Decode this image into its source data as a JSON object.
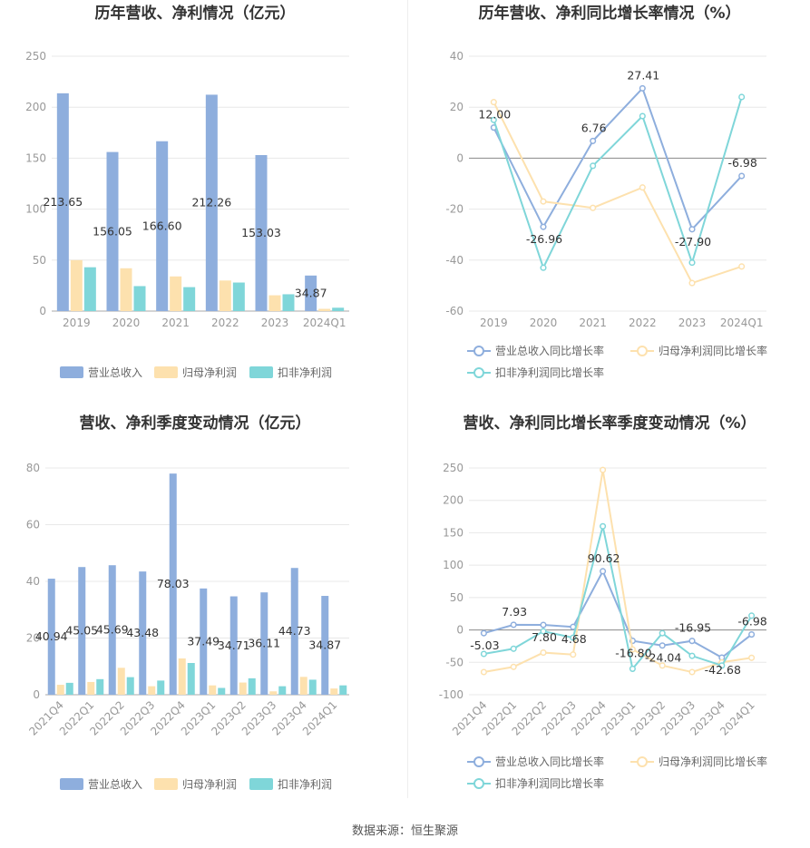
{
  "footer": "数据来源：恒生聚源",
  "colors": {
    "revenue": "#8eaedd",
    "net_profit": "#fde1ae",
    "deducted_profit": "#7fd6d9",
    "grid": "#e8e8e8",
    "axis": "#999999"
  },
  "chart_data": [
    {
      "id": "annual_amounts",
      "type": "bar",
      "title": "历年营收、净利情况（亿元）",
      "categories": [
        "2019",
        "2020",
        "2021",
        "2022",
        "2023",
        "2024Q1"
      ],
      "ylim": [
        0,
        250
      ],
      "yticks": [
        0,
        50,
        100,
        150,
        200,
        250
      ],
      "series": [
        {
          "name": "营业总收入",
          "values": [
            213.65,
            156.05,
            166.6,
            212.26,
            153.03,
            34.87
          ],
          "labels": [
            "213.65",
            "156.05",
            "166.60",
            "212.26",
            "153.03",
            "34.87"
          ]
        },
        {
          "name": "归母净利润",
          "values": [
            50,
            42,
            34,
            30,
            15.5,
            2.2
          ]
        },
        {
          "name": "扣非净利润",
          "values": [
            43,
            24.5,
            23.5,
            28,
            16.5,
            3.3
          ]
        }
      ],
      "legend": "bottom",
      "grid": true
    },
    {
      "id": "annual_growth",
      "type": "line",
      "title": "历年营收、净利同比增长率情况（%）",
      "categories": [
        "2019",
        "2020",
        "2021",
        "2022",
        "2023",
        "2024Q1"
      ],
      "ylim": [
        -60,
        40
      ],
      "yticks": [
        -60,
        -40,
        -20,
        0,
        20,
        40
      ],
      "series": [
        {
          "name": "营业总收入同比增长率",
          "values": [
            12.0,
            -26.96,
            6.76,
            27.41,
            -27.9,
            -6.98
          ],
          "labels": [
            "12.00",
            "-26.96",
            "6.76",
            "27.41",
            "-27.90",
            "-6.98"
          ]
        },
        {
          "name": "归母净利润同比增长率",
          "values": [
            22,
            -17,
            -19.5,
            -11.5,
            -49,
            -42.5
          ]
        },
        {
          "name": "扣非净利润同比增长率",
          "values": [
            15,
            -43,
            -3,
            16.5,
            -41,
            24
          ]
        }
      ],
      "legend": "bottom",
      "grid": true
    },
    {
      "id": "quarterly_amounts",
      "type": "bar",
      "title": "营收、净利季度变动情况（亿元）",
      "categories": [
        "2021Q4",
        "2022Q1",
        "2022Q2",
        "2022Q3",
        "2022Q4",
        "2023Q1",
        "2023Q2",
        "2023Q3",
        "2023Q4",
        "2024Q1"
      ],
      "ylim": [
        0,
        80
      ],
      "yticks": [
        0,
        20,
        40,
        60,
        80
      ],
      "series": [
        {
          "name": "营业总收入",
          "values": [
            40.94,
            45.05,
            45.69,
            43.48,
            78.03,
            37.49,
            34.71,
            36.11,
            44.73,
            34.87
          ],
          "labels": [
            "40.94",
            "45.05",
            "45.69",
            "43.48",
            "78.03",
            "37.49",
            "34.71",
            "36.11",
            "44.73",
            "34.87"
          ]
        },
        {
          "name": "归母净利润",
          "values": [
            3.5,
            4.5,
            9.5,
            3.0,
            12.8,
            3.3,
            4.3,
            1.2,
            6.3,
            2.2
          ]
        },
        {
          "name": "扣非净利润",
          "values": [
            4.2,
            5.5,
            6.2,
            5.0,
            11.2,
            2.4,
            5.8,
            3.0,
            5.3,
            3.3
          ]
        }
      ],
      "legend": "bottom",
      "grid": true
    },
    {
      "id": "quarterly_growth",
      "type": "line",
      "title": "营收、净利同比增长率季度变动情况（%）",
      "categories": [
        "2021Q4",
        "2022Q1",
        "2022Q2",
        "2022Q3",
        "2022Q4",
        "2023Q1",
        "2023Q2",
        "2023Q3",
        "2023Q4",
        "2024Q1"
      ],
      "ylim": [
        -100,
        250
      ],
      "yticks": [
        -100,
        -50,
        0,
        50,
        100,
        150,
        200,
        250
      ],
      "series": [
        {
          "name": "营业总收入同比增长率",
          "values": [
            -5.03,
            7.93,
            7.8,
            4.68,
            90.62,
            -16.8,
            -24.04,
            -16.95,
            -42.68,
            -6.98
          ],
          "labels": [
            "-5.03",
            "7.93",
            "7.80",
            "4.68",
            "90.62",
            "-16.80",
            "-24.04",
            "-16.95",
            "-42.68",
            "-6.98"
          ]
        },
        {
          "name": "归母净利润同比增长率",
          "values": [
            -65,
            -57,
            -35,
            -38,
            247,
            -30,
            -55,
            -65,
            -50,
            -43
          ]
        },
        {
          "name": "扣非净利润同比增长率",
          "values": [
            -37,
            -29,
            -2,
            -12,
            160,
            -60,
            -5,
            -40,
            -55,
            22
          ]
        }
      ],
      "legend": "bottom",
      "grid": true
    }
  ]
}
